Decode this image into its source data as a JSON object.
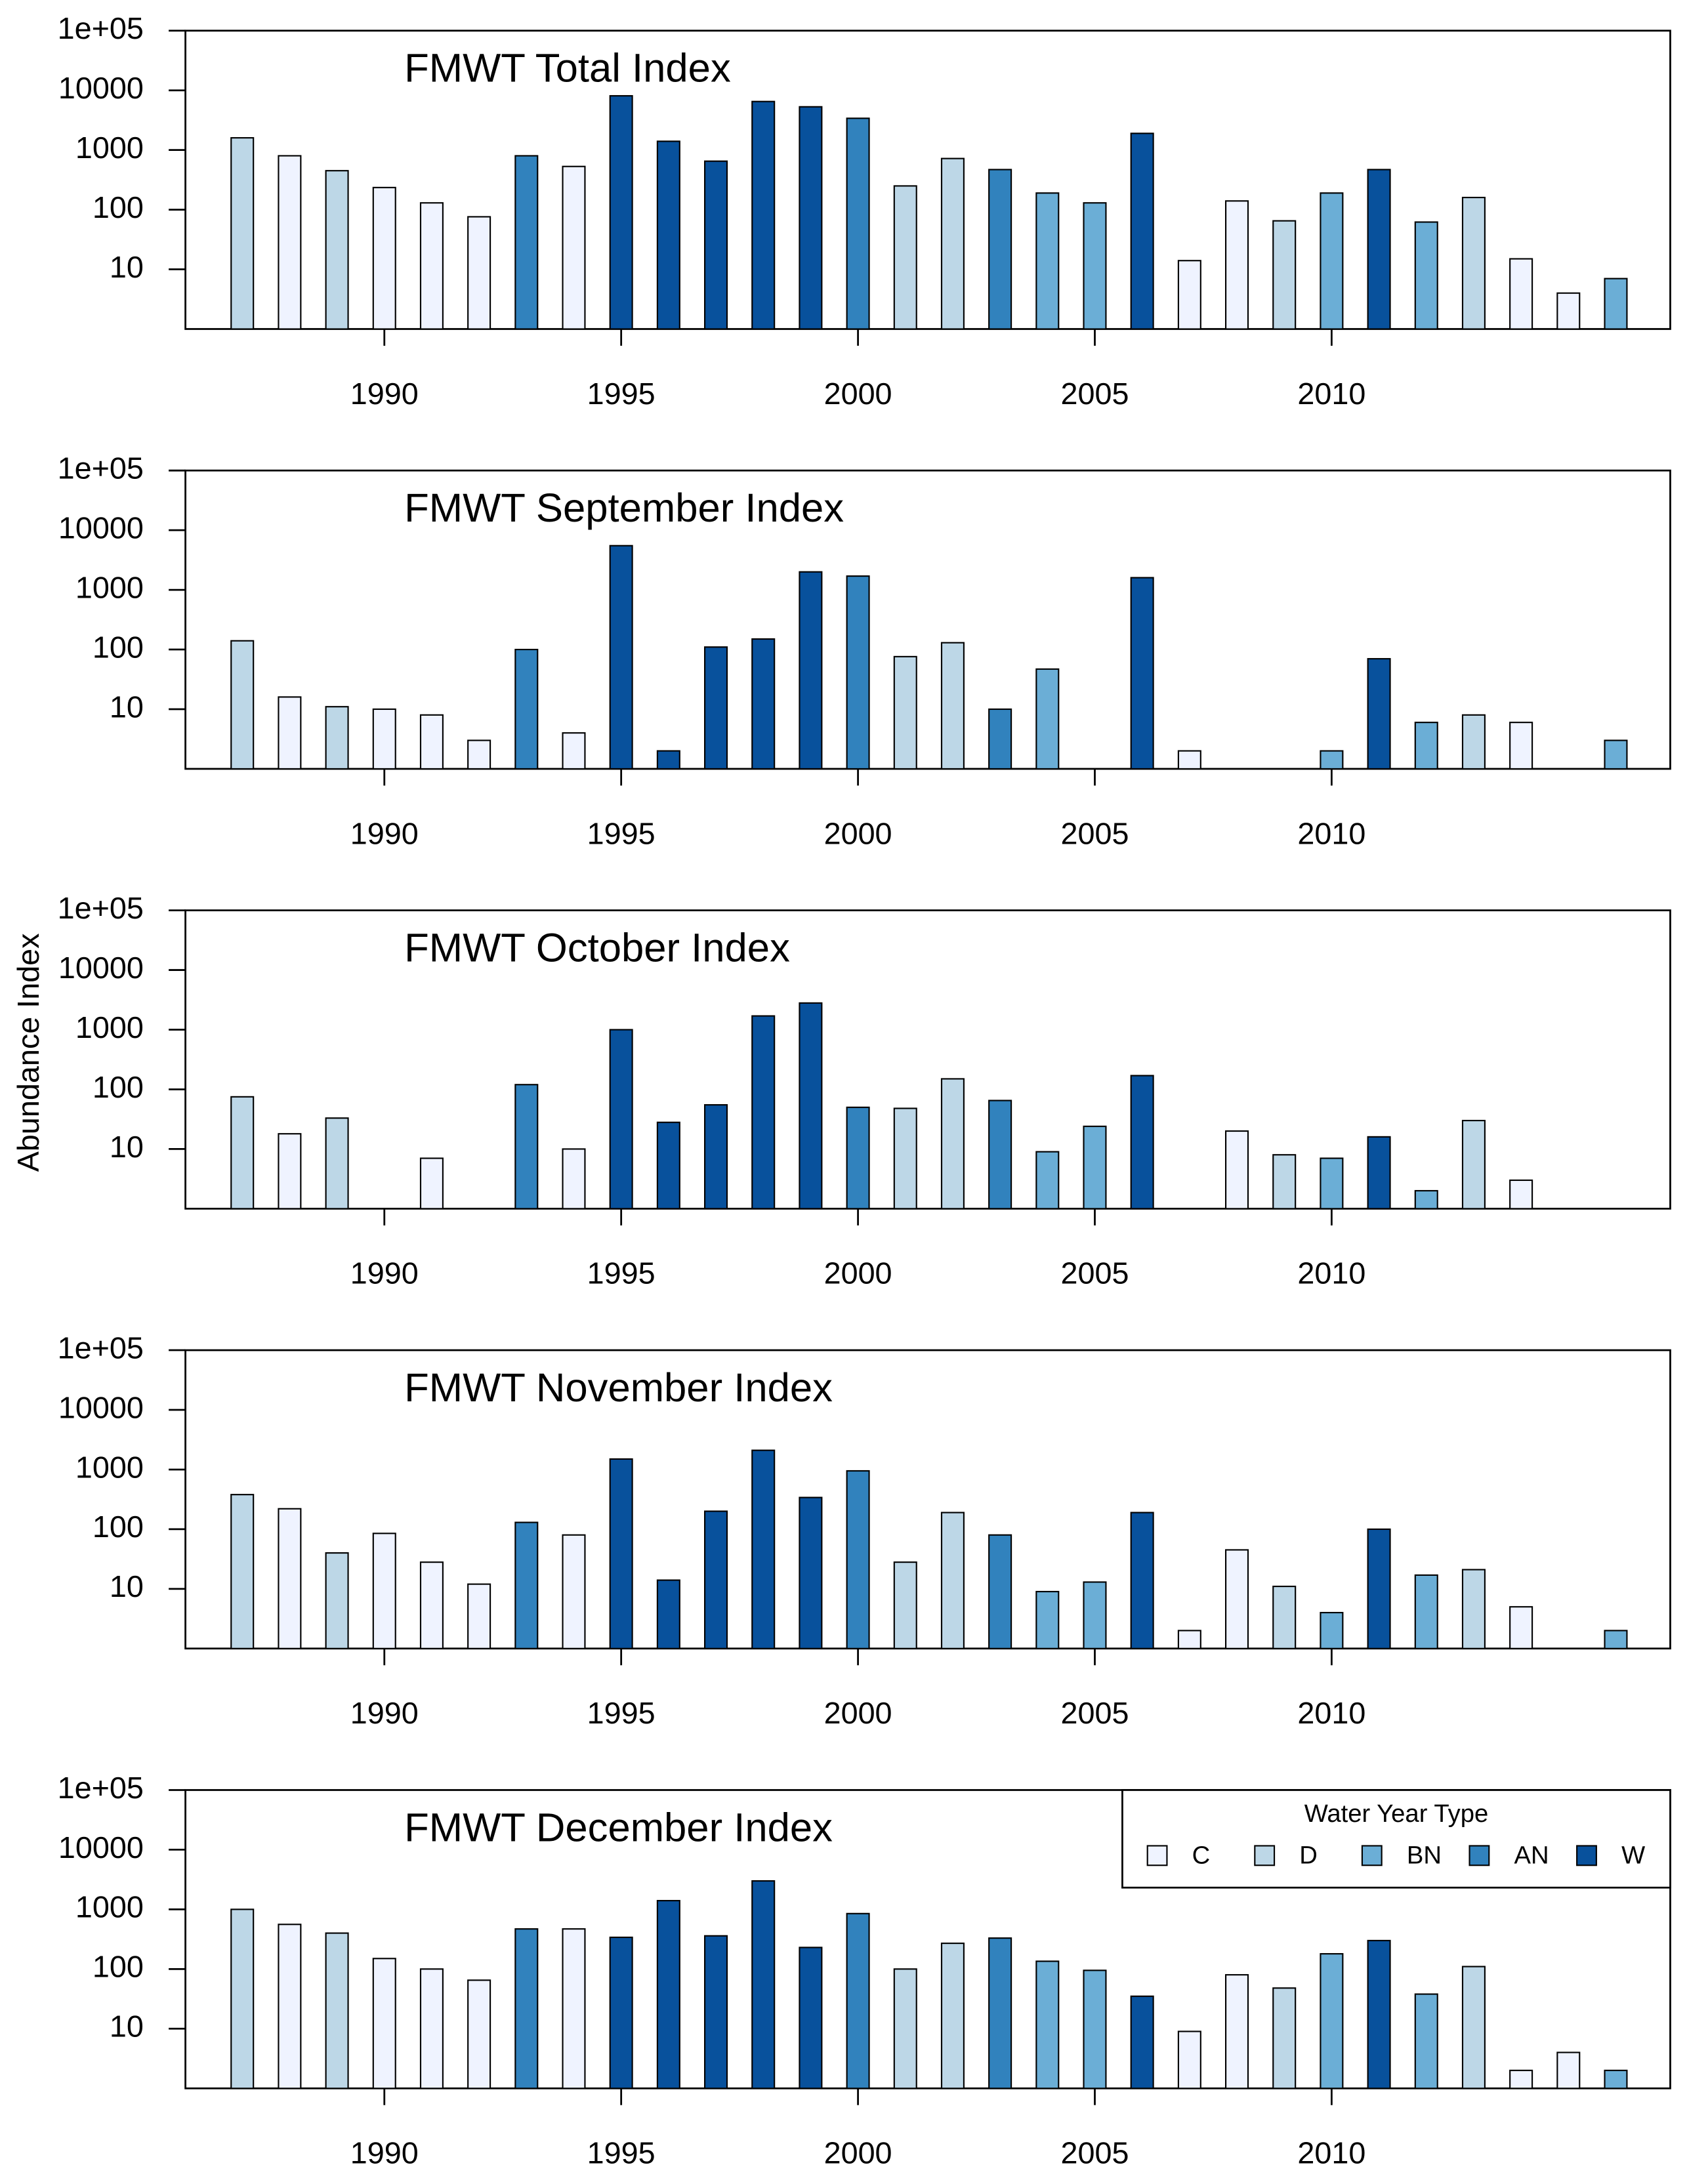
{
  "chart_data": [
    {
      "type": "bar",
      "title": "FMWT Total Index",
      "log_y": true,
      "x": [
        1987,
        1988,
        1989,
        1990,
        1991,
        1992,
        1993,
        1994,
        1995,
        1996,
        1997,
        1998,
        1999,
        2000,
        2001,
        2002,
        2003,
        2004,
        2005,
        2006,
        2007,
        2008,
        2009,
        2010,
        2011,
        2012,
        2013,
        2014,
        2015,
        2016
      ],
      "values": [
        1600,
        800,
        450,
        235,
        130,
        76,
        800,
        530,
        8100,
        1400,
        650,
        6500,
        5300,
        3400,
        250,
        720,
        470,
        190,
        130,
        1900,
        14,
        140,
        65,
        190,
        470,
        62,
        160,
        15,
        4,
        7
      ],
      "types": [
        "D",
        "C",
        "D",
        "C",
        "C",
        "C",
        "AN",
        "C",
        "W",
        "W",
        "W",
        "W",
        "W",
        "AN",
        "D",
        "D",
        "AN",
        "BN",
        "BN",
        "W",
        "C",
        "C",
        "D",
        "BN",
        "W",
        "BN",
        "D",
        "C",
        "C",
        "BN"
      ],
      "xlim": [
        1985.8,
        2017.15
      ],
      "xticks": [
        1990,
        1995,
        2000,
        2005,
        2010
      ],
      "ylim": [
        1,
        100000
      ],
      "yticks": [
        10,
        100,
        1000,
        10000,
        {
          "value": 100000,
          "label": "1e+05"
        }
      ]
    },
    {
      "type": "bar",
      "title": "FMWT September Index",
      "log_y": true,
      "x": [
        1987,
        1988,
        1989,
        1990,
        1991,
        1992,
        1993,
        1994,
        1995,
        1996,
        1997,
        1998,
        1999,
        2000,
        2001,
        2002,
        2003,
        2004,
        2005,
        2006,
        2007,
        2008,
        2009,
        2010,
        2011,
        2012,
        2013,
        2014,
        2015,
        2016
      ],
      "values": [
        140,
        16,
        11,
        10,
        8,
        3,
        100,
        4,
        5500,
        2,
        110,
        150,
        2000,
        1700,
        76,
        130,
        10,
        47,
        null,
        1600,
        2,
        null,
        null,
        2,
        70,
        6,
        8,
        6,
        null,
        3
      ],
      "types": [
        "D",
        "C",
        "D",
        "C",
        "C",
        "C",
        "AN",
        "C",
        "W",
        "W",
        "W",
        "W",
        "W",
        "AN",
        "D",
        "D",
        "AN",
        "BN",
        "BN",
        "W",
        "C",
        "C",
        "D",
        "BN",
        "W",
        "BN",
        "D",
        "C",
        "C",
        "BN"
      ],
      "xlim": [
        1985.8,
        2017.15
      ],
      "xticks": [
        1990,
        1995,
        2000,
        2005,
        2010
      ],
      "ylim": [
        1,
        100000
      ],
      "yticks": [
        10,
        100,
        1000,
        10000,
        {
          "value": 100000,
          "label": "1e+05"
        }
      ]
    },
    {
      "type": "bar",
      "title": "FMWT October Index",
      "log_y": true,
      "ylabel": "Abundance Index",
      "x": [
        1987,
        1988,
        1989,
        1990,
        1991,
        1992,
        1993,
        1994,
        1995,
        1996,
        1997,
        1998,
        1999,
        2000,
        2001,
        2002,
        2003,
        2004,
        2005,
        2006,
        2007,
        2008,
        2009,
        2010,
        2011,
        2012,
        2013,
        2014,
        2015,
        2016
      ],
      "values": [
        75,
        18,
        33,
        null,
        7,
        null,
        120,
        10,
        1000,
        28,
        55,
        1700,
        2800,
        50,
        48,
        150,
        65,
        9,
        24,
        170,
        null,
        20,
        8,
        7,
        16,
        2,
        30,
        3,
        null,
        null
      ],
      "types": [
        "D",
        "C",
        "D",
        "C",
        "C",
        "C",
        "AN",
        "C",
        "W",
        "W",
        "W",
        "W",
        "W",
        "AN",
        "D",
        "D",
        "AN",
        "BN",
        "BN",
        "W",
        "C",
        "C",
        "D",
        "BN",
        "W",
        "BN",
        "D",
        "C",
        "C",
        "BN"
      ],
      "xlim": [
        1985.8,
        2017.15
      ],
      "xticks": [
        1990,
        1995,
        2000,
        2005,
        2010
      ],
      "ylim": [
        1,
        100000
      ],
      "yticks": [
        10,
        100,
        1000,
        10000,
        {
          "value": 100000,
          "label": "1e+05"
        }
      ]
    },
    {
      "type": "bar",
      "title": "FMWT November Index",
      "log_y": true,
      "x": [
        1987,
        1988,
        1989,
        1990,
        1991,
        1992,
        1993,
        1994,
        1995,
        1996,
        1997,
        1998,
        1999,
        2000,
        2001,
        2002,
        2003,
        2004,
        2005,
        2006,
        2007,
        2008,
        2009,
        2010,
        2011,
        2012,
        2013,
        2014,
        2015,
        2016
      ],
      "values": [
        380,
        220,
        40,
        85,
        28,
        12,
        130,
        80,
        1500,
        14,
        200,
        2100,
        340,
        950,
        28,
        190,
        80,
        9,
        13,
        190,
        2,
        45,
        11,
        4,
        100,
        17,
        21,
        5,
        null,
        2
      ],
      "types": [
        "D",
        "C",
        "D",
        "C",
        "C",
        "C",
        "AN",
        "C",
        "W",
        "W",
        "W",
        "W",
        "W",
        "AN",
        "D",
        "D",
        "AN",
        "BN",
        "BN",
        "W",
        "C",
        "C",
        "D",
        "BN",
        "W",
        "BN",
        "D",
        "C",
        "C",
        "BN"
      ],
      "xlim": [
        1985.8,
        2017.15
      ],
      "xticks": [
        1990,
        1995,
        2000,
        2005,
        2010
      ],
      "ylim": [
        1,
        100000
      ],
      "yticks": [
        10,
        100,
        1000,
        10000,
        {
          "value": 100000,
          "label": "1e+05"
        }
      ]
    },
    {
      "type": "bar",
      "title": "FMWT December Index",
      "log_y": true,
      "x": [
        1987,
        1988,
        1989,
        1990,
        1991,
        1992,
        1993,
        1994,
        1995,
        1996,
        1997,
        1998,
        1999,
        2000,
        2001,
        2002,
        2003,
        2004,
        2005,
        2006,
        2007,
        2008,
        2009,
        2010,
        2011,
        2012,
        2013,
        2014,
        2015,
        2016
      ],
      "values": [
        1000,
        560,
        400,
        150,
        100,
        65,
        470,
        470,
        340,
        1400,
        360,
        3000,
        230,
        850,
        100,
        270,
        330,
        135,
        95,
        35,
        9,
        80,
        48,
        180,
        300,
        38,
        110,
        2,
        4,
        2
      ],
      "types": [
        "D",
        "C",
        "D",
        "C",
        "C",
        "C",
        "AN",
        "C",
        "W",
        "W",
        "W",
        "W",
        "W",
        "AN",
        "D",
        "D",
        "AN",
        "BN",
        "BN",
        "W",
        "C",
        "C",
        "D",
        "BN",
        "W",
        "BN",
        "D",
        "C",
        "C",
        "BN"
      ],
      "xlim": [
        1985.8,
        2017.15
      ],
      "xticks": [
        1990,
        1995,
        2000,
        2005,
        2010
      ],
      "ylim": [
        1,
        100000
      ],
      "yticks": [
        10,
        100,
        1000,
        10000,
        {
          "value": 100000,
          "label": "1e+05"
        }
      ],
      "legend": {
        "title": "Water Year Type",
        "position": "top-right",
        "items": [
          {
            "name": "C",
            "color": "#eff3ff"
          },
          {
            "name": "D",
            "color": "#bdd7e7"
          },
          {
            "name": "BN",
            "color": "#6baed6"
          },
          {
            "name": "AN",
            "color": "#3182bd"
          },
          {
            "name": "W",
            "color": "#08519c"
          }
        ]
      }
    }
  ]
}
